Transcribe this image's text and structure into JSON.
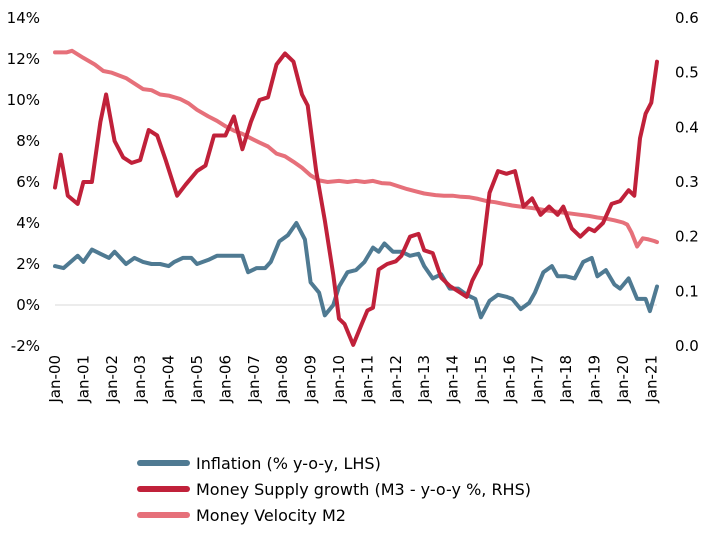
{
  "chart_data": {
    "type": "line",
    "x_tick_labels": [
      "Jan-00",
      "Jan-01",
      "Jan-02",
      "Jan-03",
      "Jan-04",
      "Jan-05",
      "Jan-06",
      "Jan-07",
      "Jan-08",
      "Jan-09",
      "Jan-10",
      "Jan-11",
      "Jan-12",
      "Jan-13",
      "Jan-14",
      "Jan-15",
      "Jan-16",
      "Jan-17",
      "Jan-18",
      "Jan-19",
      "Jan-20",
      "Jan-21"
    ],
    "y_left": {
      "ticks": [
        "-2%",
        "0%",
        "2%",
        "4%",
        "6%",
        "8%",
        "10%",
        "12%",
        "14%"
      ],
      "range": [
        -2,
        14
      ]
    },
    "y_right": {
      "ticks": [
        "0.0",
        "0.1",
        "0.2",
        "0.3",
        "0.4",
        "0.5",
        "0.6"
      ],
      "range": [
        0,
        0.6
      ]
    },
    "grid": false,
    "legend_position": "bottom",
    "series": [
      {
        "name": "Inflation (% y-o-y, LHS)",
        "axis": "left",
        "color": "#4f7a92",
        "points": [
          [
            2000.0,
            1.9
          ],
          [
            2000.3,
            1.8
          ],
          [
            2000.8,
            2.4
          ],
          [
            2001.0,
            2.1
          ],
          [
            2001.3,
            2.7
          ],
          [
            2001.6,
            2.5
          ],
          [
            2001.9,
            2.3
          ],
          [
            2002.1,
            2.6
          ],
          [
            2002.5,
            2.0
          ],
          [
            2002.8,
            2.3
          ],
          [
            2003.1,
            2.1
          ],
          [
            2003.4,
            2.0
          ],
          [
            2003.7,
            2.0
          ],
          [
            2004.0,
            1.9
          ],
          [
            2004.2,
            2.1
          ],
          [
            2004.5,
            2.3
          ],
          [
            2004.8,
            2.3
          ],
          [
            2005.0,
            2.0
          ],
          [
            2005.4,
            2.2
          ],
          [
            2005.7,
            2.4
          ],
          [
            2006.0,
            2.4
          ],
          [
            2006.4,
            2.4
          ],
          [
            2006.6,
            2.4
          ],
          [
            2006.8,
            1.6
          ],
          [
            2007.1,
            1.8
          ],
          [
            2007.4,
            1.8
          ],
          [
            2007.6,
            2.1
          ],
          [
            2007.9,
            3.1
          ],
          [
            2008.2,
            3.4
          ],
          [
            2008.5,
            4.0
          ],
          [
            2008.8,
            3.2
          ],
          [
            2009.0,
            1.1
          ],
          [
            2009.3,
            0.6
          ],
          [
            2009.5,
            -0.5
          ],
          [
            2009.8,
            0.0
          ],
          [
            2010.0,
            0.9
          ],
          [
            2010.3,
            1.6
          ],
          [
            2010.6,
            1.7
          ],
          [
            2010.9,
            2.1
          ],
          [
            2011.2,
            2.8
          ],
          [
            2011.4,
            2.6
          ],
          [
            2011.6,
            3.0
          ],
          [
            2011.9,
            2.6
          ],
          [
            2012.2,
            2.6
          ],
          [
            2012.5,
            2.4
          ],
          [
            2012.8,
            2.5
          ],
          [
            2013.0,
            1.9
          ],
          [
            2013.3,
            1.3
          ],
          [
            2013.6,
            1.5
          ],
          [
            2013.9,
            0.8
          ],
          [
            2014.2,
            0.8
          ],
          [
            2014.5,
            0.5
          ],
          [
            2014.8,
            0.3
          ],
          [
            2015.0,
            -0.6
          ],
          [
            2015.3,
            0.2
          ],
          [
            2015.6,
            0.5
          ],
          [
            2015.9,
            0.4
          ],
          [
            2016.1,
            0.3
          ],
          [
            2016.4,
            -0.2
          ],
          [
            2016.7,
            0.1
          ],
          [
            2016.9,
            0.6
          ],
          [
            2017.2,
            1.6
          ],
          [
            2017.5,
            1.9
          ],
          [
            2017.7,
            1.4
          ],
          [
            2018.0,
            1.4
          ],
          [
            2018.3,
            1.3
          ],
          [
            2018.6,
            2.1
          ],
          [
            2018.9,
            2.3
          ],
          [
            2019.1,
            1.4
          ],
          [
            2019.4,
            1.7
          ],
          [
            2019.7,
            1.0
          ],
          [
            2019.9,
            0.8
          ],
          [
            2020.2,
            1.3
          ],
          [
            2020.5,
            0.3
          ],
          [
            2020.8,
            0.3
          ],
          [
            2020.95,
            -0.3
          ],
          [
            2021.2,
            0.9
          ]
        ]
      },
      {
        "name": "Money Supply growth (M3 - y-o-y %, RHS)",
        "axis": "right",
        "color": "#c0213a",
        "points": [
          [
            2000.0,
            0.29
          ],
          [
            2000.2,
            0.35
          ],
          [
            2000.45,
            0.275
          ],
          [
            2000.8,
            0.26
          ],
          [
            2001.0,
            0.3
          ],
          [
            2001.3,
            0.3
          ],
          [
            2001.6,
            0.41
          ],
          [
            2001.8,
            0.46
          ],
          [
            2002.1,
            0.375
          ],
          [
            2002.4,
            0.345
          ],
          [
            2002.7,
            0.335
          ],
          [
            2003.0,
            0.34
          ],
          [
            2003.3,
            0.395
          ],
          [
            2003.6,
            0.385
          ],
          [
            2003.9,
            0.34
          ],
          [
            2004.3,
            0.275
          ],
          [
            2004.6,
            0.295
          ],
          [
            2005.0,
            0.32
          ],
          [
            2005.3,
            0.33
          ],
          [
            2005.6,
            0.385
          ],
          [
            2006.0,
            0.385
          ],
          [
            2006.3,
            0.42
          ],
          [
            2006.6,
            0.36
          ],
          [
            2006.9,
            0.41
          ],
          [
            2007.2,
            0.45
          ],
          [
            2007.5,
            0.455
          ],
          [
            2007.8,
            0.515
          ],
          [
            2008.1,
            0.535
          ],
          [
            2008.4,
            0.52
          ],
          [
            2008.7,
            0.46
          ],
          [
            2008.9,
            0.44
          ],
          [
            2009.2,
            0.32
          ],
          [
            2009.5,
            0.23
          ],
          [
            2009.8,
            0.13
          ],
          [
            2010.0,
            0.05
          ],
          [
            2010.2,
            0.04
          ],
          [
            2010.5,
            0.002
          ],
          [
            2010.8,
            0.04
          ],
          [
            2011.0,
            0.065
          ],
          [
            2011.2,
            0.07
          ],
          [
            2011.4,
            0.14
          ],
          [
            2011.7,
            0.15
          ],
          [
            2012.0,
            0.155
          ],
          [
            2012.2,
            0.165
          ],
          [
            2012.5,
            0.2
          ],
          [
            2012.8,
            0.205
          ],
          [
            2013.0,
            0.175
          ],
          [
            2013.3,
            0.17
          ],
          [
            2013.6,
            0.125
          ],
          [
            2013.9,
            0.11
          ],
          [
            2014.2,
            0.1
          ],
          [
            2014.5,
            0.09
          ],
          [
            2014.7,
            0.12
          ],
          [
            2015.0,
            0.15
          ],
          [
            2015.3,
            0.28
          ],
          [
            2015.6,
            0.32
          ],
          [
            2015.9,
            0.315
          ],
          [
            2016.2,
            0.32
          ],
          [
            2016.5,
            0.255
          ],
          [
            2016.8,
            0.27
          ],
          [
            2017.1,
            0.24
          ],
          [
            2017.4,
            0.255
          ],
          [
            2017.7,
            0.24
          ],
          [
            2017.9,
            0.255
          ],
          [
            2018.2,
            0.215
          ],
          [
            2018.5,
            0.2
          ],
          [
            2018.8,
            0.215
          ],
          [
            2019.0,
            0.21
          ],
          [
            2019.3,
            0.225
          ],
          [
            2019.6,
            0.26
          ],
          [
            2019.9,
            0.265
          ],
          [
            2020.2,
            0.285
          ],
          [
            2020.4,
            0.275
          ],
          [
            2020.6,
            0.38
          ],
          [
            2020.8,
            0.425
          ],
          [
            2021.0,
            0.445
          ],
          [
            2021.2,
            0.52
          ]
        ]
      },
      {
        "name": "Money Velocity M2",
        "axis": "right",
        "color": "#e6707a",
        "points": [
          [
            2000.0,
            0.537
          ],
          [
            2000.4,
            0.537
          ],
          [
            2000.6,
            0.54
          ],
          [
            2001.0,
            0.527
          ],
          [
            2001.4,
            0.515
          ],
          [
            2001.7,
            0.503
          ],
          [
            2002.0,
            0.5
          ],
          [
            2002.5,
            0.49
          ],
          [
            2002.8,
            0.48
          ],
          [
            2003.1,
            0.47
          ],
          [
            2003.4,
            0.468
          ],
          [
            2003.7,
            0.46
          ],
          [
            2004.0,
            0.458
          ],
          [
            2004.4,
            0.452
          ],
          [
            2004.7,
            0.444
          ],
          [
            2005.0,
            0.432
          ],
          [
            2005.4,
            0.42
          ],
          [
            2005.7,
            0.412
          ],
          [
            2006.0,
            0.402
          ],
          [
            2006.3,
            0.394
          ],
          [
            2006.6,
            0.388
          ],
          [
            2006.9,
            0.38
          ],
          [
            2007.2,
            0.372
          ],
          [
            2007.5,
            0.365
          ],
          [
            2007.8,
            0.352
          ],
          [
            2008.1,
            0.347
          ],
          [
            2008.4,
            0.337
          ],
          [
            2008.7,
            0.326
          ],
          [
            2009.0,
            0.312
          ],
          [
            2009.3,
            0.303
          ],
          [
            2009.6,
            0.3
          ],
          [
            2010.0,
            0.302
          ],
          [
            2010.3,
            0.3
          ],
          [
            2010.6,
            0.302
          ],
          [
            2010.9,
            0.3
          ],
          [
            2011.2,
            0.302
          ],
          [
            2011.5,
            0.298
          ],
          [
            2011.8,
            0.297
          ],
          [
            2012.1,
            0.292
          ],
          [
            2012.4,
            0.287
          ],
          [
            2012.7,
            0.283
          ],
          [
            2013.0,
            0.279
          ],
          [
            2013.4,
            0.276
          ],
          [
            2013.7,
            0.275
          ],
          [
            2014.0,
            0.275
          ],
          [
            2014.3,
            0.273
          ],
          [
            2014.6,
            0.272
          ],
          [
            2014.9,
            0.269
          ],
          [
            2015.2,
            0.265
          ],
          [
            2015.5,
            0.263
          ],
          [
            2015.8,
            0.26
          ],
          [
            2016.1,
            0.257
          ],
          [
            2016.4,
            0.255
          ],
          [
            2016.7,
            0.253
          ],
          [
            2017.0,
            0.251
          ],
          [
            2017.3,
            0.248
          ],
          [
            2017.6,
            0.246
          ],
          [
            2017.9,
            0.244
          ],
          [
            2018.2,
            0.242
          ],
          [
            2018.5,
            0.24
          ],
          [
            2018.8,
            0.238
          ],
          [
            2019.1,
            0.235
          ],
          [
            2019.4,
            0.233
          ],
          [
            2019.7,
            0.23
          ],
          [
            2020.0,
            0.226
          ],
          [
            2020.15,
            0.222
          ],
          [
            2020.3,
            0.208
          ],
          [
            2020.5,
            0.182
          ],
          [
            2020.7,
            0.197
          ],
          [
            2020.9,
            0.195
          ],
          [
            2021.1,
            0.192
          ],
          [
            2021.2,
            0.19
          ]
        ]
      }
    ]
  }
}
